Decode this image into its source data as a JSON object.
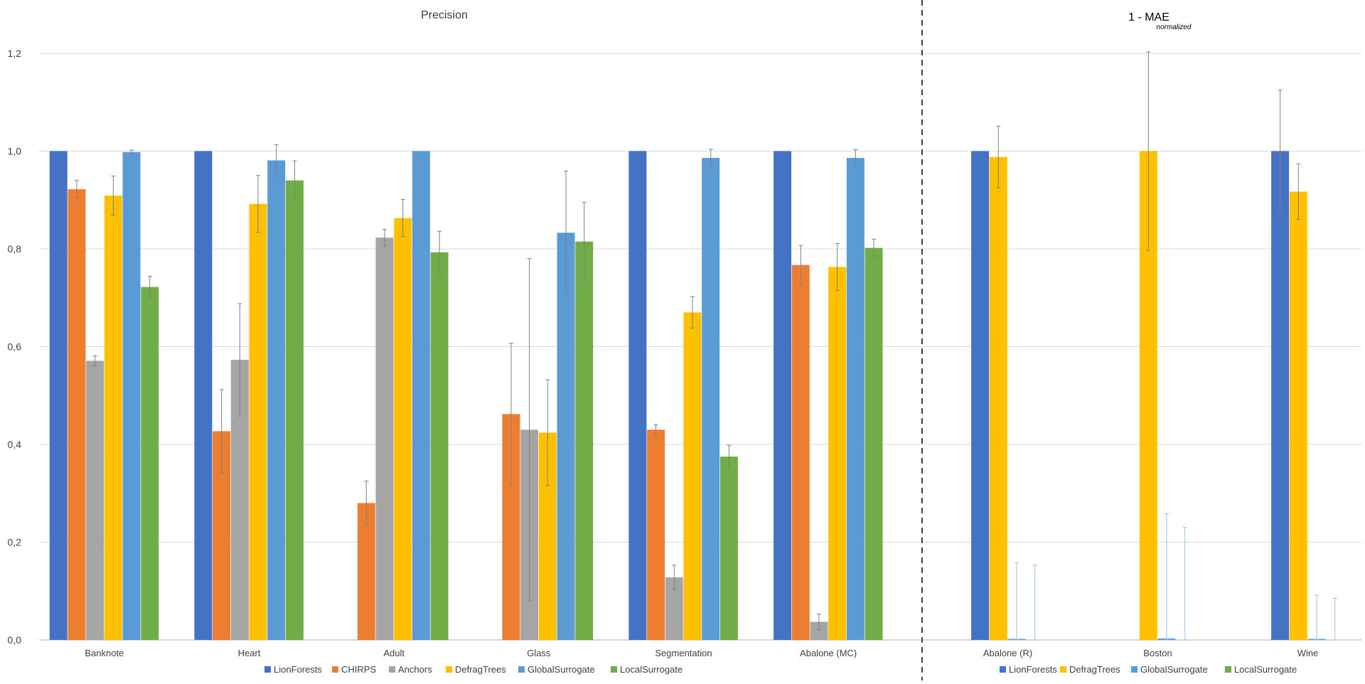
{
  "chart_data": [
    {
      "type": "bar",
      "title": "Precision",
      "ylim": [
        0,
        1.2
      ],
      "yticks": [
        "0,0",
        "0,2",
        "0,4",
        "0,6",
        "0,8",
        "1,0",
        "1,2"
      ],
      "grid": true,
      "legend_position": "bottom",
      "categories": [
        "Banknote",
        "Heart",
        "Adult",
        "Glass",
        "Segmentation",
        "Abalone (MC)"
      ],
      "series": [
        {
          "name": "LionForests",
          "color": "#4472C4",
          "values": [
            1.0,
            1.0,
            null,
            null,
            1.0,
            1.0
          ],
          "errors": [
            0,
            0,
            null,
            null,
            0,
            0
          ]
        },
        {
          "name": "CHIRPS",
          "color": "#ED7D31",
          "values": [
            0.922,
            0.427,
            0.28,
            0.462,
            0.43,
            0.767
          ],
          "errors": [
            0.018,
            0.085,
            0.045,
            0.145,
            0.01,
            0.04
          ]
        },
        {
          "name": "Anchors",
          "color": "#A5A5A5",
          "values": [
            0.571,
            0.573,
            0.823,
            0.43,
            0.128,
            0.037
          ],
          "errors": [
            0.01,
            0.115,
            0.017,
            0.35,
            0.025,
            0.016
          ]
        },
        {
          "name": "DefragTrees",
          "color": "#FFC000",
          "values": [
            0.909,
            0.892,
            0.863,
            0.424,
            0.67,
            0.763
          ],
          "errors": [
            0.04,
            0.058,
            0.038,
            0.108,
            0.032,
            0.048
          ]
        },
        {
          "name": "GlobalSurrogate",
          "color": "#5B9BD5",
          "values": [
            0.998,
            0.981,
            1.0,
            0.833,
            0.986,
            0.986
          ],
          "errors": [
            0.004,
            0.032,
            0,
            0.126,
            0.018,
            0.017
          ]
        },
        {
          "name": "LocalSurrogate",
          "color": "#70AD47",
          "values": [
            0.722,
            0.94,
            0.793,
            0.815,
            0.375,
            0.802
          ],
          "errors": [
            0.022,
            0.04,
            0.043,
            0.08,
            0.023,
            0.018
          ]
        }
      ]
    },
    {
      "type": "bar",
      "title": "1 - MAE",
      "title_subscript": "normalized",
      "ylim": [
        0,
        1.2
      ],
      "grid": true,
      "legend_position": "bottom",
      "categories": [
        "Abalone (R)",
        "Boston",
        "Wine"
      ],
      "series": [
        {
          "name": "LionForests",
          "color": "#4472C4",
          "values": [
            1.0,
            null,
            1.0
          ],
          "errors": [
            0,
            null,
            0.125
          ]
        },
        {
          "name": "DefragTrees",
          "color": "#FFC000",
          "values": [
            0.988,
            1.0,
            0.917
          ],
          "errors": [
            0.063,
            0.203,
            0.057
          ]
        },
        {
          "name": "GlobalSurrogate",
          "color": "#5B9BD5",
          "values": [
            0.002,
            0.003,
            0.002
          ],
          "errors": [
            0.156,
            0.255,
            0.09
          ]
        },
        {
          "name": "LocalSurrogate",
          "color": "#70AD47",
          "values": [
            0.0,
            0.0,
            0.0
          ],
          "errors": [
            0.153,
            0.23,
            0.085
          ]
        }
      ]
    }
  ]
}
